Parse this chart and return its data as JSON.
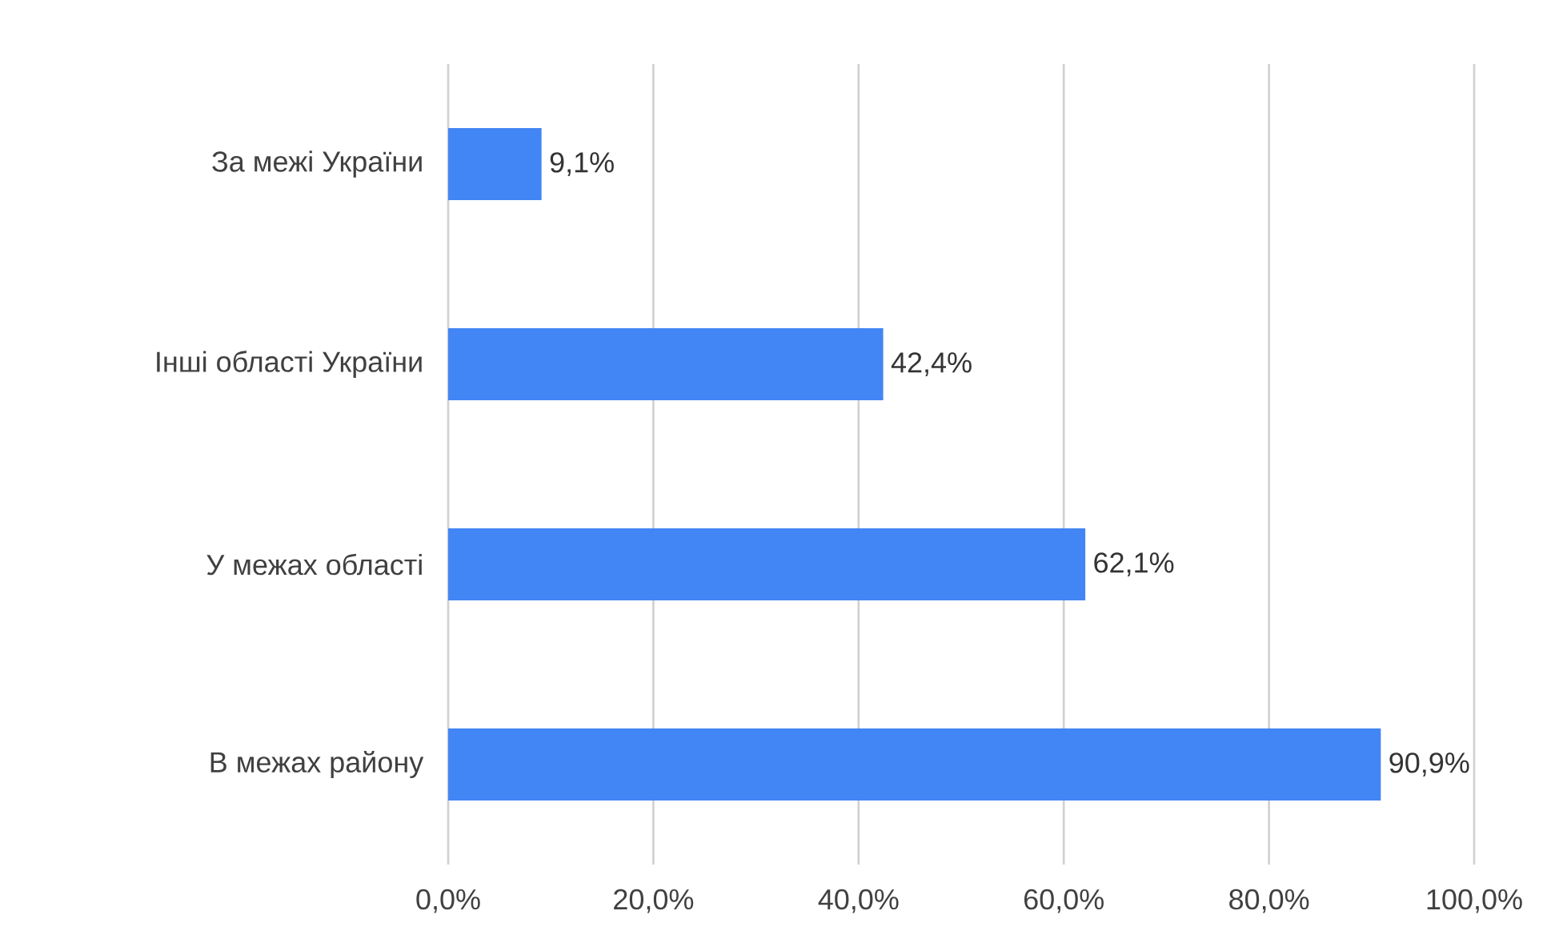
{
  "chart_data": {
    "type": "bar",
    "orientation": "horizontal",
    "categories": [
      "За межі України",
      "Інші області України",
      "У межах області",
      "В межах району"
    ],
    "values": [
      9.1,
      42.4,
      62.1,
      90.9
    ],
    "value_labels": [
      "9,1%",
      "42,4%",
      "62,1%",
      "90,9%"
    ],
    "color": "#4285f4",
    "xlim": [
      0,
      100
    ],
    "xticks": [
      {
        "value": 0,
        "label": "0,0%"
      },
      {
        "value": 20,
        "label": "20,0%"
      },
      {
        "value": 40,
        "label": "40,0%"
      },
      {
        "value": 60,
        "label": "60,0%"
      },
      {
        "value": 80,
        "label": "80,0%"
      },
      {
        "value": 100,
        "label": "100,0%"
      }
    ],
    "grid": "x"
  }
}
